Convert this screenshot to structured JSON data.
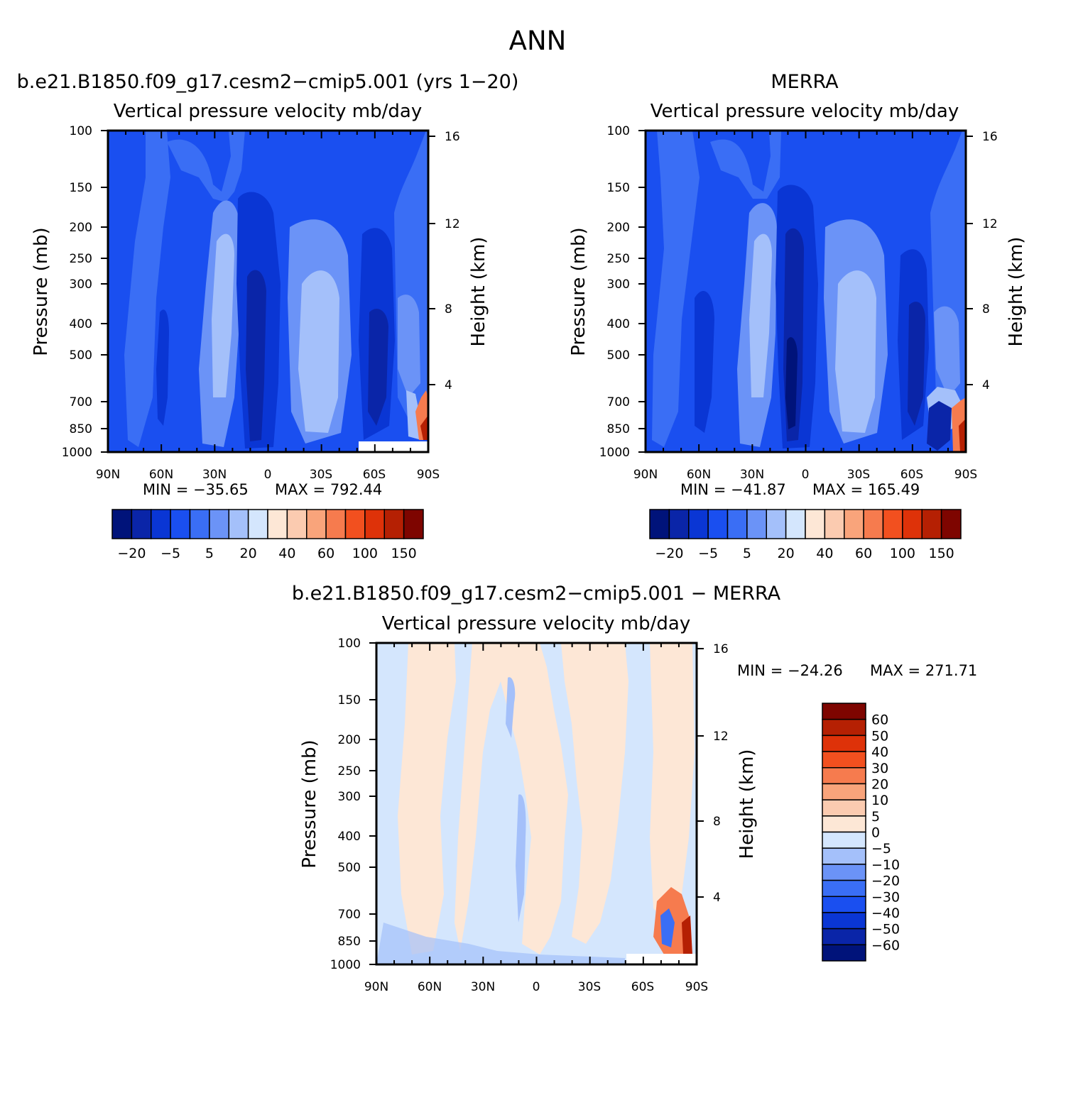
{
  "figure": {
    "title": "ANN"
  },
  "colors": {
    "full_levels": [
      "#00137a",
      "#0a25a8",
      "#0a36d4",
      "#1a4ff0",
      "#3a6ef5",
      "#6b93f7",
      "#a4c0fa",
      "#d4e6fd",
      "#fde7d6",
      "#fbcbb0",
      "#f9a47b",
      "#f67b4e",
      "#f2501f",
      "#de3209",
      "#b52003",
      "#7e0500"
    ],
    "diff_levels": [
      "#00137a",
      "#0a25a8",
      "#0a36d4",
      "#1a4ff0",
      "#3a6ef5",
      "#6b93f7",
      "#a4c0fa",
      "#d4e6fd",
      "#fde7d6",
      "#fbcbb0",
      "#f9a47b",
      "#f67b4e",
      "#f2501f",
      "#de3209",
      "#b52003",
      "#7e0500"
    ]
  },
  "chart_data": [
    {
      "type": "heatmap",
      "title": "b.e21.B1850.f09_g17.cesm2−cmip5.001 (yrs 1−20)",
      "subtitle": "Vertical pressure velocity   mb/day",
      "ylabel": "Pressure (mb)",
      "y2label": "Height (km)",
      "x_ticks": [
        "90N",
        "60N",
        "30N",
        "0",
        "30S",
        "60S",
        "90S"
      ],
      "y_ticks": [
        "100",
        "150",
        "200",
        "250",
        "300",
        "400",
        "500",
        "700",
        "850",
        "1000"
      ],
      "y2_ticks": [
        "16",
        "12",
        "8",
        "4"
      ],
      "min_label": "MIN = −35.65",
      "max_label": "MAX = 792.44",
      "colorbar_labels": [
        "−20",
        "−5",
        "5",
        "20",
        "40",
        "60",
        "100",
        "150"
      ],
      "ylim": [
        1000,
        100
      ],
      "xlim": [
        90,
        -90
      ]
    },
    {
      "type": "heatmap",
      "title": "MERRA",
      "subtitle": "Vertical pressure velocity   mb/day",
      "ylabel": "Pressure (mb)",
      "y2label": "Height (km)",
      "x_ticks": [
        "90N",
        "60N",
        "30N",
        "0",
        "30S",
        "60S",
        "90S"
      ],
      "y_ticks": [
        "100",
        "150",
        "200",
        "250",
        "300",
        "400",
        "500",
        "700",
        "850",
        "1000"
      ],
      "y2_ticks": [
        "16",
        "12",
        "8",
        "4"
      ],
      "min_label": "MIN = −41.87",
      "max_label": "MAX = 165.49",
      "colorbar_labels": [
        "−20",
        "−5",
        "5",
        "20",
        "40",
        "60",
        "100",
        "150"
      ],
      "ylim": [
        1000,
        100
      ],
      "xlim": [
        90,
        -90
      ]
    },
    {
      "type": "heatmap",
      "title": "b.e21.B1850.f09_g17.cesm2−cmip5.001 − MERRA",
      "subtitle": "Vertical pressure velocity   mb/day",
      "ylabel": "Pressure (mb)",
      "y2label": "Height (km)",
      "x_ticks": [
        "90N",
        "60N",
        "30N",
        "0",
        "30S",
        "60S",
        "90S"
      ],
      "y_ticks": [
        "100",
        "150",
        "200",
        "250",
        "300",
        "400",
        "500",
        "700",
        "850",
        "1000"
      ],
      "y2_ticks": [
        "16",
        "12",
        "8",
        "4"
      ],
      "min_label": "MIN = −24.26",
      "max_label": "MAX = 271.71",
      "colorbar_labels": [
        "60",
        "50",
        "40",
        "30",
        "20",
        "10",
        "5",
        "0",
        "−5",
        "−10",
        "−20",
        "−30",
        "−40",
        "−50",
        "−60"
      ],
      "ylim": [
        1000,
        100
      ],
      "xlim": [
        90,
        -90
      ]
    }
  ]
}
